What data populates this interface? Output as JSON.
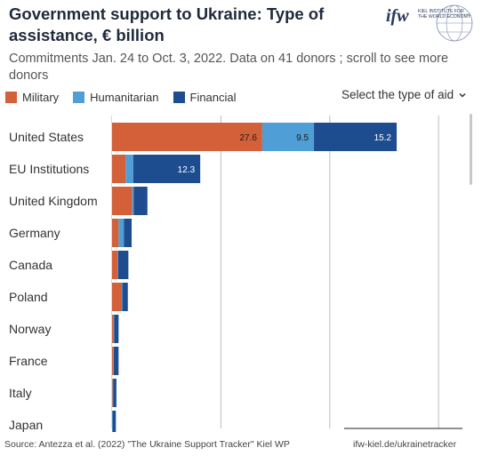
{
  "header": {
    "title": "Government support to Ukraine: Type of assistance, € billion",
    "subtitle": "Commitments Jan. 24 to Oct. 3, 2022. Data on 41 donors ; scroll to see more donors",
    "logo_text": "ifw",
    "logo_sub1": "KIEL INSTITUTE FOR",
    "logo_sub2": "THE WORLD ECONOMY"
  },
  "controls": {
    "selector_label": "Select the type of aid",
    "selector_icon": "chevron-down-icon"
  },
  "colors": {
    "military": "#d4603a",
    "humanitarian": "#4f9fd6",
    "financial": "#1d4c8f"
  },
  "chart_data": {
    "type": "bar",
    "orientation": "horizontal",
    "stacked": true,
    "categories": [
      "United States",
      "EU Institutions",
      "United Kingdom",
      "Germany",
      "Canada",
      "Poland",
      "Norway",
      "France",
      "Italy",
      "Japan"
    ],
    "series": [
      {
        "name": "Military",
        "values": [
          27.6,
          2.5,
          3.7,
          1.2,
          1.0,
          1.8,
          0.3,
          0.2,
          0.1,
          0.0
        ]
      },
      {
        "name": "Humanitarian",
        "values": [
          9.5,
          1.4,
          0.3,
          1.0,
          0.1,
          0.1,
          0.1,
          0.1,
          0.1,
          0.1
        ]
      },
      {
        "name": "Financial",
        "values": [
          15.2,
          12.3,
          2.5,
          1.4,
          1.9,
          1.0,
          0.8,
          0.9,
          0.6,
          0.6
        ]
      }
    ],
    "data_labels": [
      [
        "27.6",
        "9.5",
        "15.2"
      ],
      [
        "",
        "",
        "12.3"
      ],
      [
        "",
        "",
        ""
      ],
      [
        "",
        "",
        ""
      ],
      [
        "",
        "",
        ""
      ],
      [
        "",
        "",
        ""
      ],
      [
        "",
        "",
        ""
      ],
      [
        "",
        "",
        ""
      ],
      [
        "",
        "",
        ""
      ],
      [
        "",
        "",
        ""
      ]
    ],
    "xlim": [
      0,
      65
    ],
    "gridlines": [
      20,
      40,
      60
    ],
    "legend": "top-left",
    "grid": true
  },
  "footer": {
    "source": "Source: Antezza et al. (2022) \"The Ukraine Support Tracker\" Kiel WP",
    "link": "ifw-kiel.de/ukrainetracker"
  }
}
